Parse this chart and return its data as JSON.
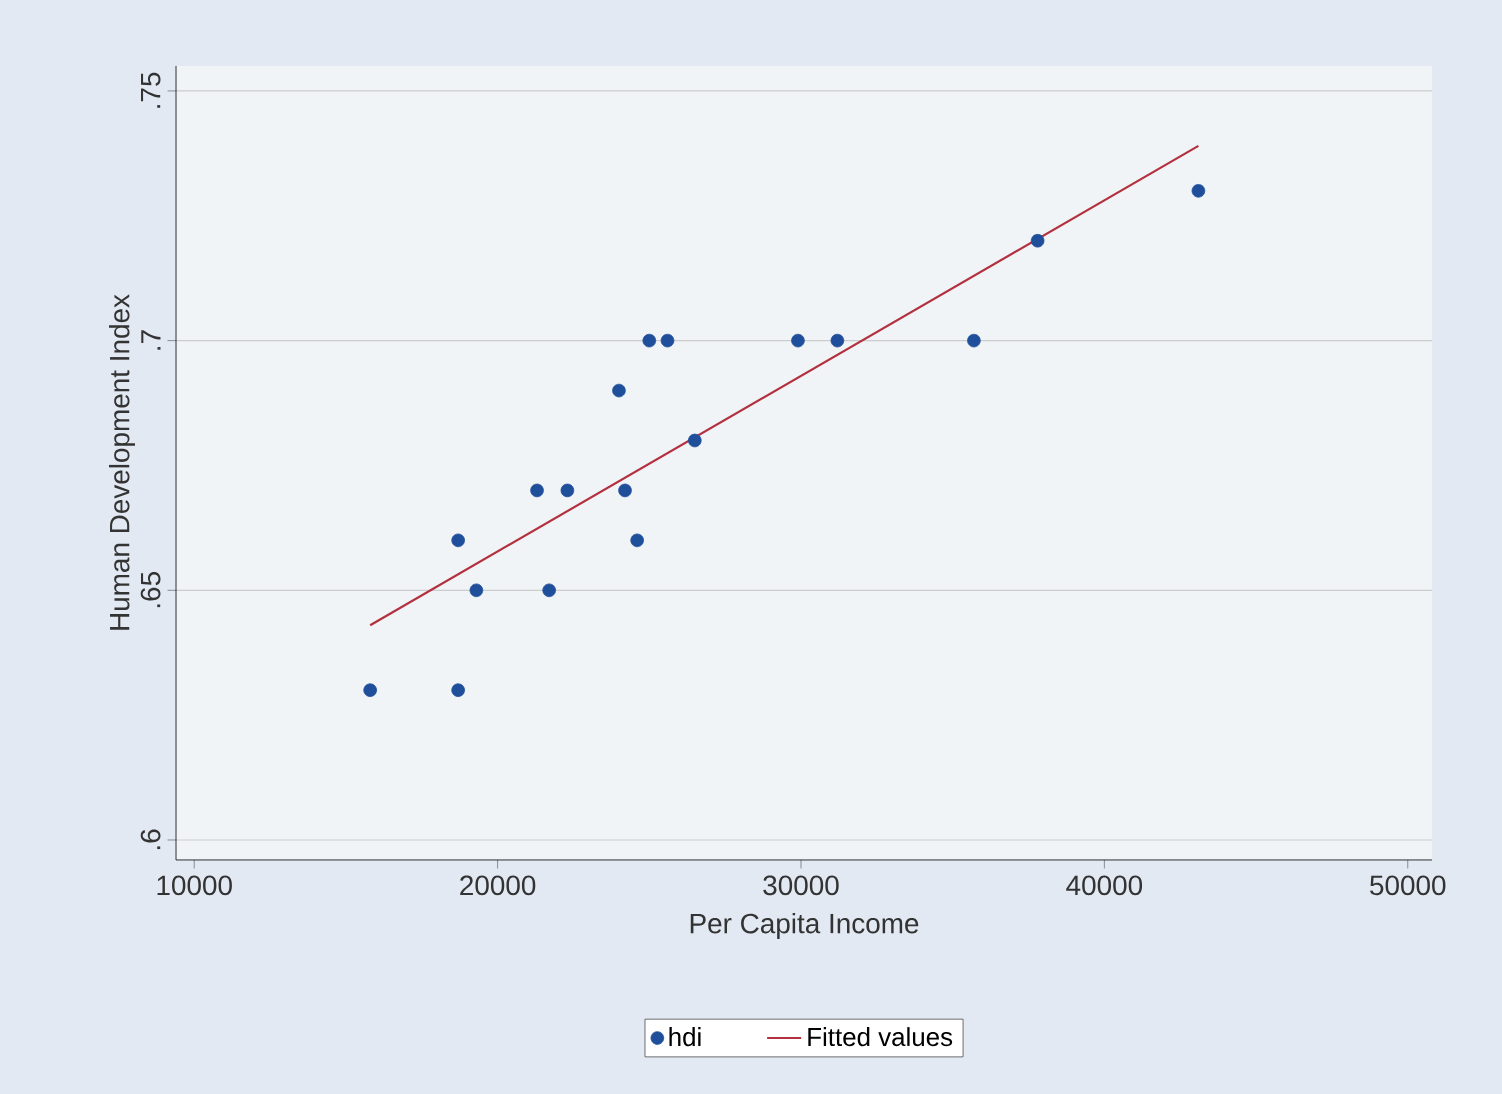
{
  "chart_data": {
    "type": "scatter",
    "xlabel": "Per Capita Income",
    "ylabel": "Human Development Index",
    "xlim": [
      9400,
      50800
    ],
    "ylim": [
      0.596,
      0.755
    ],
    "xticks": [
      10000,
      20000,
      30000,
      40000,
      50000
    ],
    "yticks": [
      {
        "value": 0.6,
        "label": ".6"
      },
      {
        "value": 0.65,
        "label": ".65"
      },
      {
        "value": 0.7,
        "label": ".7"
      },
      {
        "value": 0.75,
        "label": ".75"
      }
    ],
    "grid": "y",
    "legend": "bottom",
    "series": [
      {
        "name": "hdi",
        "marker": "circle",
        "color": "#1f4e9a",
        "x": [
          15800,
          18700,
          18700,
          19300,
          21300,
          21700,
          22300,
          24000,
          24200,
          24600,
          25000,
          25600,
          26500,
          29900,
          31200,
          35700,
          37800,
          43100
        ],
        "values": [
          0.63,
          0.63,
          0.66,
          0.65,
          0.67,
          0.65,
          0.67,
          0.69,
          0.67,
          0.66,
          0.7,
          0.7,
          0.68,
          0.7,
          0.7,
          0.7,
          0.72,
          0.73
        ]
      },
      {
        "name": "Fitted values",
        "type": "line",
        "marker": "none",
        "line_style": "solid",
        "color": "#b3303f",
        "x": [
          15800,
          43100
        ],
        "values": [
          0.643,
          0.739
        ]
      }
    ]
  }
}
